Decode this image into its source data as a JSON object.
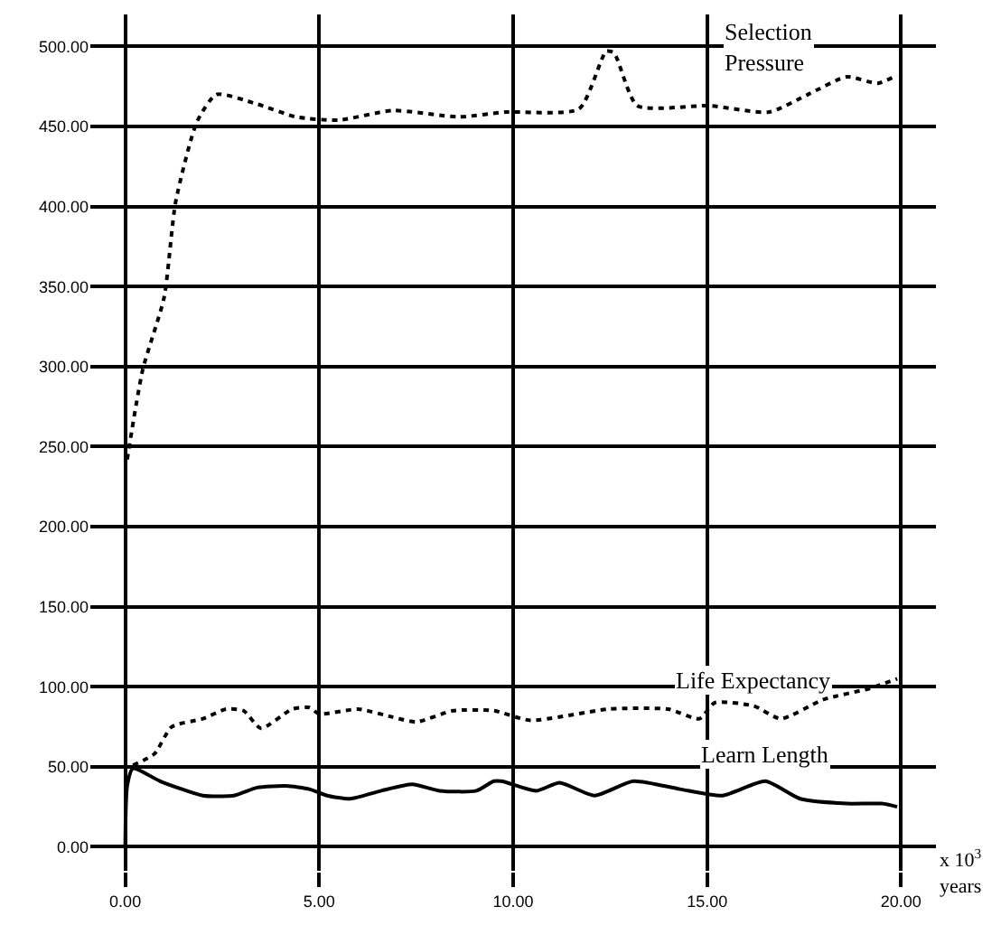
{
  "chart_data": {
    "type": "line",
    "xlabel": "x 10$^{3}$ years",
    "xlim": [
      -0.9,
      20.9
    ],
    "ylim": [
      -15,
      520
    ],
    "xticks": [
      {
        "value": 0,
        "label": "0.00"
      },
      {
        "value": 5,
        "label": "5.00"
      },
      {
        "value": 10,
        "label": "10.00"
      },
      {
        "value": 15,
        "label": "15.00"
      },
      {
        "value": 20,
        "label": "20.00"
      }
    ],
    "yticks": [
      {
        "value": 0,
        "label": "0.00"
      },
      {
        "value": 50,
        "label": "50.00"
      },
      {
        "value": 100,
        "label": "100.00"
      },
      {
        "value": 150,
        "label": "150.00"
      },
      {
        "value": 200,
        "label": "200.00"
      },
      {
        "value": 250,
        "label": "250.00"
      },
      {
        "value": 300,
        "label": "300.00"
      },
      {
        "value": 350,
        "label": "350.00"
      },
      {
        "value": 400,
        "label": "400.00"
      },
      {
        "value": 450,
        "label": "450.00"
      },
      {
        "value": 500,
        "label": "500.00"
      }
    ],
    "grid": true,
    "legend": false,
    "marker": "none",
    "series": [
      {
        "name": "Selection\nPressure",
        "color": "#000000",
        "line_style": "dotted",
        "x": [
          0.05,
          0.45,
          1.0,
          1.3,
          1.85,
          2.35,
          3.4,
          4.4,
          5.5,
          6.9,
          8.6,
          9.8,
          11.7,
          12.4,
          12.6,
          13.2,
          15.05,
          16.6,
          17.6,
          18.6,
          19.4,
          19.9
        ],
        "values": [
          242,
          298,
          343,
          403,
          453,
          470,
          464,
          456,
          454,
          460,
          456,
          459,
          461,
          497,
          496,
          463,
          463,
          459,
          470,
          481,
          477,
          482
        ]
      },
      {
        "name": "Life Expectancy",
        "color": "#000000",
        "line_style": "dotted",
        "x": [
          0.2,
          0.75,
          1.2,
          2.0,
          2.6,
          3.05,
          3.5,
          4.3,
          4.75,
          5.0,
          6.0,
          6.9,
          7.5,
          8.45,
          9.5,
          10.45,
          12.45,
          14.0,
          14.8,
          15.2,
          16.2,
          16.9,
          18.0,
          19.2,
          19.9
        ],
        "values": [
          51,
          58,
          75,
          80,
          86,
          85,
          74,
          86,
          87,
          83,
          86,
          81,
          78,
          85,
          85,
          79,
          86,
          86,
          80,
          90,
          88,
          80,
          92,
          99,
          105
        ]
      },
      {
        "name": "Learn Length",
        "color": "#000000",
        "line_style": "solid",
        "x": [
          0,
          0.05,
          0.2,
          0.9,
          2.0,
          2.8,
          3.4,
          4.15,
          4.75,
          5.2,
          5.8,
          6.6,
          7.4,
          8.1,
          9.05,
          9.5,
          9.7,
          10.6,
          11.2,
          12.1,
          13.1,
          14.3,
          15.4,
          16.5,
          17.4,
          18.6,
          19.5,
          19.9
        ],
        "values": [
          0,
          38,
          49,
          41,
          32,
          32,
          37,
          38,
          36,
          32,
          30,
          35,
          39,
          35,
          35,
          41,
          41,
          35,
          40,
          32,
          41,
          36,
          32,
          41,
          30,
          27,
          27,
          25
        ]
      }
    ]
  }
}
